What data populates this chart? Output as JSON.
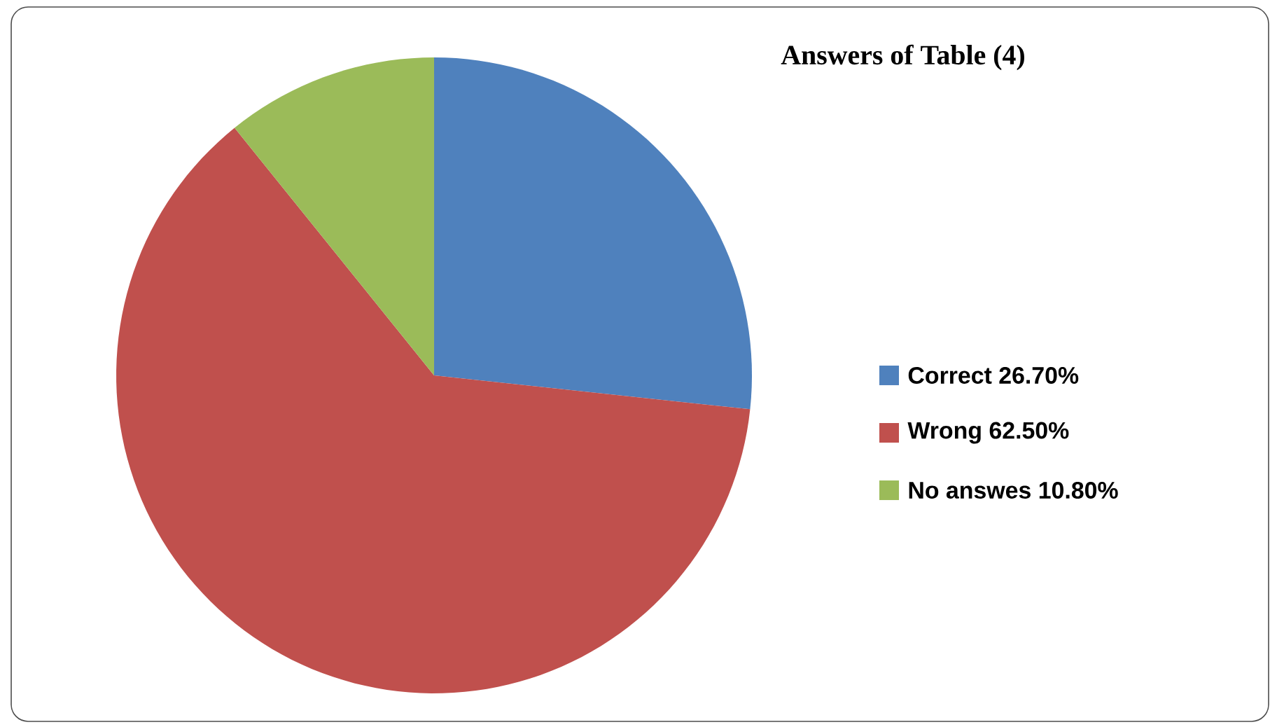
{
  "chart_data": {
    "type": "pie",
    "title": "Answers of Table (4)",
    "categories": [
      "Correct  26.70%",
      "Wrong    62.50%",
      "No answes 10.80%"
    ],
    "values": [
      26.7,
      62.5,
      10.8
    ],
    "colors": [
      "#4f81bd",
      "#c0504d",
      "#9bbb59"
    ],
    "legend": "right"
  }
}
